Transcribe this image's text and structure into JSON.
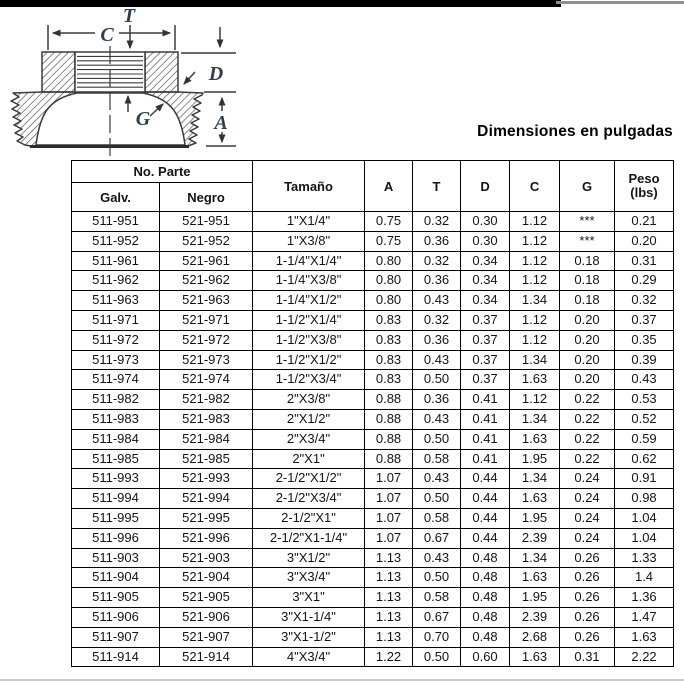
{
  "title": "Dimensiones en pulgadas",
  "diagram": {
    "labels": {
      "t": "T",
      "c": "C",
      "d": "D",
      "g": "G",
      "a": "A"
    }
  },
  "table": {
    "header": {
      "no_parte": "No. Parte",
      "galv": "Galv.",
      "negro": "Negro",
      "tamano": "Tamaño",
      "a": "A",
      "t": "T",
      "d": "D",
      "c": "C",
      "g": "G",
      "peso": "Peso",
      "peso_unit": "(lbs)"
    },
    "rows": [
      [
        "511-951",
        "521-951",
        "1\"X1/4\"",
        "0.75",
        "0.32",
        "0.30",
        "1.12",
        "***",
        "0.21"
      ],
      [
        "511-952",
        "521-952",
        "1\"X3/8\"",
        "0.75",
        "0.36",
        "0.30",
        "1.12",
        "***",
        "0.20"
      ],
      [
        "511-961",
        "521-961",
        "1-1/4\"X1/4\"",
        "0.80",
        "0.32",
        "0.34",
        "1.12",
        "0.18",
        "0.31"
      ],
      [
        "511-962",
        "521-962",
        "1-1/4\"X3/8\"",
        "0.80",
        "0.36",
        "0.34",
        "1.12",
        "0.18",
        "0.29"
      ],
      [
        "511-963",
        "521-963",
        "1-1/4\"X1/2\"",
        "0.80",
        "0.43",
        "0.34",
        "1.34",
        "0.18",
        "0.32"
      ],
      [
        "511-971",
        "521-971",
        "1-1/2\"X1/4\"",
        "0.83",
        "0.32",
        "0.37",
        "1.12",
        "0.20",
        "0.37"
      ],
      [
        "511-972",
        "521-972",
        "1-1/2\"X3/8\"",
        "0.83",
        "0.36",
        "0.37",
        "1.12",
        "0.20",
        "0.35"
      ],
      [
        "511-973",
        "521-973",
        "1-1/2\"X1/2\"",
        "0.83",
        "0.43",
        "0.37",
        "1.34",
        "0.20",
        "0.39"
      ],
      [
        "511-974",
        "521-974",
        "1-1/2\"X3/4\"",
        "0.83",
        "0.50",
        "0.37",
        "1.63",
        "0.20",
        "0.43"
      ],
      [
        "511-982",
        "521-982",
        "2\"X3/8\"",
        "0.88",
        "0.36",
        "0.41",
        "1.12",
        "0.22",
        "0.53"
      ],
      [
        "511-983",
        "521-983",
        "2\"X1/2\"",
        "0.88",
        "0.43",
        "0.41",
        "1.34",
        "0.22",
        "0.52"
      ],
      [
        "511-984",
        "521-984",
        "2\"X3/4\"",
        "0.88",
        "0.50",
        "0.41",
        "1.63",
        "0.22",
        "0.59"
      ],
      [
        "511-985",
        "521-985",
        "2\"X1\"",
        "0.88",
        "0.58",
        "0.41",
        "1.95",
        "0.22",
        "0.62"
      ],
      [
        "511-993",
        "521-993",
        "2-1/2\"X1/2\"",
        "1.07",
        "0.43",
        "0.44",
        "1.34",
        "0.24",
        "0.91"
      ],
      [
        "511-994",
        "521-994",
        "2-1/2\"X3/4\"",
        "1.07",
        "0.50",
        "0.44",
        "1.63",
        "0.24",
        "0.98"
      ],
      [
        "511-995",
        "521-995",
        "2-1/2\"X1\"",
        "1.07",
        "0.58",
        "0.44",
        "1.95",
        "0.24",
        "1.04"
      ],
      [
        "511-996",
        "521-996",
        "2-1/2\"X1-1/4\"",
        "1.07",
        "0.67",
        "0.44",
        "2.39",
        "0.24",
        "1.04"
      ],
      [
        "511-903",
        "521-903",
        "3\"X1/2\"",
        "1.13",
        "0.43",
        "0.48",
        "1.34",
        "0.26",
        "1.33"
      ],
      [
        "511-904",
        "521-904",
        "3\"X3/4\"",
        "1.13",
        "0.50",
        "0.48",
        "1.63",
        "0.26",
        "1.4"
      ],
      [
        "511-905",
        "521-905",
        "3\"X1\"",
        "1.13",
        "0.58",
        "0.48",
        "1.95",
        "0.26",
        "1.36"
      ],
      [
        "511-906",
        "521-906",
        "3\"X1-1/4\"",
        "1.13",
        "0.67",
        "0.48",
        "2.39",
        "0.26",
        "1.47"
      ],
      [
        "511-907",
        "521-907",
        "3\"X1-1/2\"",
        "1.13",
        "0.70",
        "0.48",
        "2.68",
        "0.26",
        "1.63"
      ],
      [
        "511-914",
        "521-914",
        "4\"X3/4\"",
        "1.22",
        "0.50",
        "0.60",
        "1.63",
        "0.31",
        "2.22"
      ]
    ]
  },
  "colors": {
    "top_bar": "#000000",
    "table_border": "#000000",
    "diagram_label": "#2e3d50",
    "text": "#141414"
  }
}
